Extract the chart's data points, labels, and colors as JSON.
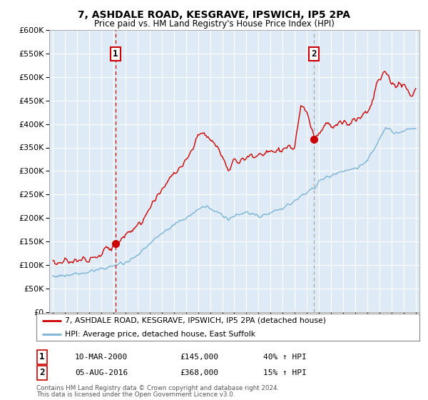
{
  "title": "7, ASHDALE ROAD, KESGRAVE, IPSWICH, IP5 2PA",
  "subtitle": "Price paid vs. HM Land Registry's House Price Index (HPI)",
  "legend_line1": "7, ASHDALE ROAD, KESGRAVE, IPSWICH, IP5 2PA (detached house)",
  "legend_line2": "HPI: Average price, detached house, East Suffolk",
  "annotation1_label": "1",
  "annotation1_date": "10-MAR-2000",
  "annotation1_price": "£145,000",
  "annotation1_hpi": "40% ↑ HPI",
  "annotation2_label": "2",
  "annotation2_date": "05-AUG-2016",
  "annotation2_price": "£368,000",
  "annotation2_hpi": "15% ↑ HPI",
  "footnote1": "Contains HM Land Registry data © Crown copyright and database right 2024.",
  "footnote2": "This data is licensed under the Open Government Licence v3.0.",
  "ylim": [
    0,
    600000
  ],
  "yticks": [
    0,
    50000,
    100000,
    150000,
    200000,
    250000,
    300000,
    350000,
    400000,
    450000,
    500000,
    550000,
    600000
  ],
  "hpi_color": "#7ab3d4",
  "price_color": "#cc0000",
  "vline1_color": "#cc0000",
  "vline2_color": "#aaaaaa",
  "plot_bg_color": "#deeaf5",
  "bg_color": "#ffffff",
  "grid_color": "#ffffff",
  "purchase1_year": 2000.19,
  "purchase2_year": 2016.59,
  "purchase1_price": 145000,
  "purchase2_price": 368000,
  "xlim_left": 1994.7,
  "xlim_right": 2025.3
}
